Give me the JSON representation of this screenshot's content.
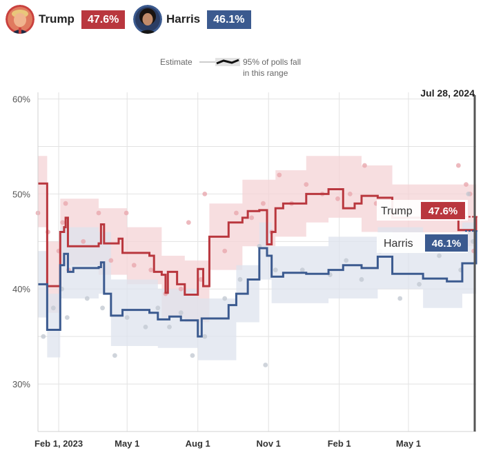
{
  "header": {
    "candidates": [
      {
        "name": "Trump",
        "pct": "47.6%",
        "color": "#b9373e"
      },
      {
        "name": "Harris",
        "pct": "46.1%",
        "color": "#3b5a8f"
      }
    ]
  },
  "legend": {
    "estimate_label": "Estimate",
    "range_label_line1": "95% of polls fall",
    "range_label_line2": "in this range"
  },
  "current_date_label": "Jul 28, 2024",
  "end_labels": [
    {
      "name": "Trump",
      "pct": "47.6%"
    },
    {
      "name": "Harris",
      "pct": "46.1%"
    }
  ],
  "chart_data": {
    "type": "line",
    "title": "",
    "xlabel": "",
    "ylabel": "",
    "ylim": [
      25,
      62
    ],
    "xlim": [
      "2023-01-05",
      "2024-07-28"
    ],
    "y_ticks": [
      "30%",
      "40%",
      "50%",
      "60%"
    ],
    "x_ticks": [
      {
        "date": "2023-02-01",
        "label": "Feb 1, 2023"
      },
      {
        "date": "2023-05-01",
        "label": "May 1"
      },
      {
        "date": "2023-08-01",
        "label": "Aug 1"
      },
      {
        "date": "2023-11-01",
        "label": "Nov 1"
      },
      {
        "date": "2024-02-01",
        "label": "Feb 1"
      },
      {
        "date": "2024-05-01",
        "label": "May 1"
      }
    ],
    "grid": true,
    "series": [
      {
        "name": "Trump",
        "color": "#b9373e",
        "band_color": "#f4d3d6",
        "points": [
          [
            "2023-01-05",
            51.1
          ],
          [
            "2023-01-17",
            40.3
          ],
          [
            "2023-01-30",
            40.3
          ],
          [
            "2023-02-03",
            46.0
          ],
          [
            "2023-02-08",
            46.5
          ],
          [
            "2023-02-10",
            47.5
          ],
          [
            "2023-02-13",
            44.5
          ],
          [
            "2023-03-25",
            44.8
          ],
          [
            "2023-03-28",
            46.8
          ],
          [
            "2023-04-01",
            44.8
          ],
          [
            "2023-04-20",
            45.3
          ],
          [
            "2023-04-25",
            43.8
          ],
          [
            "2023-05-30",
            43.5
          ],
          [
            "2023-06-05",
            41.8
          ],
          [
            "2023-06-15",
            41.5
          ],
          [
            "2023-06-20",
            39.6
          ],
          [
            "2023-06-23",
            41.8
          ],
          [
            "2023-07-05",
            40.5
          ],
          [
            "2023-07-15",
            39.4
          ],
          [
            "2023-08-01",
            42.1
          ],
          [
            "2023-08-08",
            40.3
          ],
          [
            "2023-08-16",
            45.5
          ],
          [
            "2023-09-10",
            47.0
          ],
          [
            "2023-09-28",
            47.5
          ],
          [
            "2023-10-05",
            48.2
          ],
          [
            "2023-10-20",
            48.3
          ],
          [
            "2023-10-30",
            44.7
          ],
          [
            "2023-11-05",
            46.0
          ],
          [
            "2023-11-10",
            48.5
          ],
          [
            "2023-11-20",
            49.0
          ],
          [
            "2023-12-20",
            50.0
          ],
          [
            "2024-01-18",
            50.5
          ],
          [
            "2024-02-06",
            48.5
          ],
          [
            "2024-02-21",
            49.0
          ],
          [
            "2024-03-01",
            49.8
          ],
          [
            "2024-03-22",
            49.6
          ],
          [
            "2024-04-10",
            47.5
          ],
          [
            "2024-07-05",
            46.2
          ],
          [
            "2024-07-28",
            47.6
          ]
        ],
        "band": [
          [
            "2023-01-05",
            46.5,
            54.0
          ],
          [
            "2023-01-17",
            37.5,
            45.0
          ],
          [
            "2023-02-03",
            42.5,
            49.5
          ],
          [
            "2023-03-25",
            41.5,
            48.5
          ],
          [
            "2023-05-01",
            40.5,
            46.5
          ],
          [
            "2023-06-15",
            37.0,
            43.5
          ],
          [
            "2023-07-15",
            36.5,
            43.0
          ],
          [
            "2023-08-16",
            42.0,
            49.0
          ],
          [
            "2023-09-28",
            44.5,
            51.5
          ],
          [
            "2023-11-10",
            45.5,
            52.5
          ],
          [
            "2023-12-20",
            47.0,
            54.0
          ],
          [
            "2024-01-18",
            47.5,
            54.0
          ],
          [
            "2024-03-01",
            46.0,
            53.0
          ],
          [
            "2024-04-10",
            44.5,
            51.0
          ],
          [
            "2024-07-28",
            44.0,
            51.5
          ]
        ],
        "end_value": 47.6
      },
      {
        "name": "Harris",
        "color": "#3b5a8f",
        "band_color": "#dde3ee",
        "points": [
          [
            "2023-01-05",
            40.5
          ],
          [
            "2023-01-17",
            35.7
          ],
          [
            "2023-01-30",
            35.7
          ],
          [
            "2023-02-03",
            42.5
          ],
          [
            "2023-02-08",
            43.7
          ],
          [
            "2023-02-13",
            41.8
          ],
          [
            "2023-02-20",
            42.2
          ],
          [
            "2023-03-25",
            42.3
          ],
          [
            "2023-03-28",
            42.8
          ],
          [
            "2023-04-01",
            39.5
          ],
          [
            "2023-04-10",
            37.2
          ],
          [
            "2023-04-25",
            37.8
          ],
          [
            "2023-05-30",
            37.5
          ],
          [
            "2023-06-10",
            36.8
          ],
          [
            "2023-06-25",
            37.1
          ],
          [
            "2023-07-10",
            36.7
          ],
          [
            "2023-08-01",
            35.0
          ],
          [
            "2023-08-06",
            36.9
          ],
          [
            "2023-09-10",
            38.3
          ],
          [
            "2023-09-20",
            39.5
          ],
          [
            "2023-10-05",
            41.0
          ],
          [
            "2023-10-20",
            44.3
          ],
          [
            "2023-10-30",
            43.5
          ],
          [
            "2023-11-05",
            41.3
          ],
          [
            "2023-11-20",
            41.7
          ],
          [
            "2023-12-20",
            41.6
          ],
          [
            "2024-01-18",
            42.0
          ],
          [
            "2024-02-06",
            42.5
          ],
          [
            "2024-03-01",
            42.2
          ],
          [
            "2024-03-22",
            43.4
          ],
          [
            "2024-04-10",
            41.6
          ],
          [
            "2024-05-20",
            41.1
          ],
          [
            "2024-06-20",
            40.8
          ],
          [
            "2024-07-10",
            42.7
          ],
          [
            "2024-07-28",
            46.1
          ]
        ],
        "band": [
          [
            "2023-01-05",
            37.0,
            44.0
          ],
          [
            "2023-01-17",
            32.8,
            39.5
          ],
          [
            "2023-02-03",
            39.0,
            46.5
          ],
          [
            "2023-03-25",
            39.5,
            46.0
          ],
          [
            "2023-04-10",
            34.0,
            41.0
          ],
          [
            "2023-06-10",
            33.8,
            40.0
          ],
          [
            "2023-08-01",
            32.5,
            39.0
          ],
          [
            "2023-09-20",
            36.5,
            42.5
          ],
          [
            "2023-10-20",
            41.0,
            47.0
          ],
          [
            "2023-11-05",
            38.5,
            44.5
          ],
          [
            "2024-01-18",
            39.0,
            45.5
          ],
          [
            "2024-03-22",
            40.0,
            46.5
          ],
          [
            "2024-05-20",
            38.0,
            44.5
          ],
          [
            "2024-07-10",
            39.5,
            47.0
          ],
          [
            "2024-07-28",
            42.5,
            49.5
          ]
        ],
        "end_value": 46.1
      }
    ],
    "polls": [
      {
        "series": "Trump",
        "color": "#e9a8ae",
        "points": [
          [
            "2023-01-05",
            48
          ],
          [
            "2023-01-18",
            46
          ],
          [
            "2023-02-01",
            44
          ],
          [
            "2023-02-06",
            47
          ],
          [
            "2023-02-10",
            49
          ],
          [
            "2023-02-14",
            42
          ],
          [
            "2023-03-05",
            45
          ],
          [
            "2023-03-25",
            48
          ],
          [
            "2023-04-10",
            43
          ],
          [
            "2023-04-30",
            48
          ],
          [
            "2023-05-10",
            42.5
          ],
          [
            "2023-06-01",
            42
          ],
          [
            "2023-06-20",
            39.5
          ],
          [
            "2023-07-10",
            40
          ],
          [
            "2023-07-20",
            47
          ],
          [
            "2023-08-05",
            41
          ],
          [
            "2023-08-10",
            50
          ],
          [
            "2023-09-05",
            44
          ],
          [
            "2023-09-20",
            48
          ],
          [
            "2023-10-10",
            47.5
          ],
          [
            "2023-10-25",
            49
          ],
          [
            "2023-11-05",
            46
          ],
          [
            "2023-11-15",
            52
          ],
          [
            "2023-12-01",
            49
          ],
          [
            "2023-12-20",
            51
          ],
          [
            "2024-01-10",
            50
          ],
          [
            "2024-01-30",
            49.5
          ],
          [
            "2024-02-15",
            50
          ],
          [
            "2024-03-05",
            53
          ],
          [
            "2024-03-20",
            49
          ],
          [
            "2024-04-15",
            48
          ],
          [
            "2024-07-05",
            53
          ],
          [
            "2024-07-15",
            51
          ],
          [
            "2024-07-20",
            50
          ],
          [
            "2024-07-25",
            44
          ]
        ]
      },
      {
        "series": "Harris",
        "color": "#c3c9d2",
        "points": [
          [
            "2023-01-12",
            35
          ],
          [
            "2023-01-25",
            38
          ],
          [
            "2023-02-05",
            40
          ],
          [
            "2023-02-12",
            37
          ],
          [
            "2023-03-10",
            39
          ],
          [
            "2023-03-30",
            38
          ],
          [
            "2023-04-15",
            33
          ],
          [
            "2023-05-01",
            37
          ],
          [
            "2023-05-25",
            36
          ],
          [
            "2023-06-10",
            38
          ],
          [
            "2023-06-25",
            36
          ],
          [
            "2023-07-10",
            37.5
          ],
          [
            "2023-07-25",
            33
          ],
          [
            "2023-08-10",
            35
          ],
          [
            "2023-09-05",
            39
          ],
          [
            "2023-09-25",
            41
          ],
          [
            "2023-10-20",
            44.5
          ],
          [
            "2023-10-28",
            32
          ],
          [
            "2023-11-10",
            42
          ],
          [
            "2023-12-15",
            42
          ],
          [
            "2024-01-20",
            41.5
          ],
          [
            "2024-02-10",
            43
          ],
          [
            "2024-03-01",
            41
          ],
          [
            "2024-03-25",
            44
          ],
          [
            "2024-04-20",
            39
          ],
          [
            "2024-05-15",
            40.5
          ],
          [
            "2024-06-10",
            43.5
          ],
          [
            "2024-07-08",
            42
          ],
          [
            "2024-07-18",
            50
          ],
          [
            "2024-07-24",
            45
          ]
        ]
      }
    ]
  }
}
